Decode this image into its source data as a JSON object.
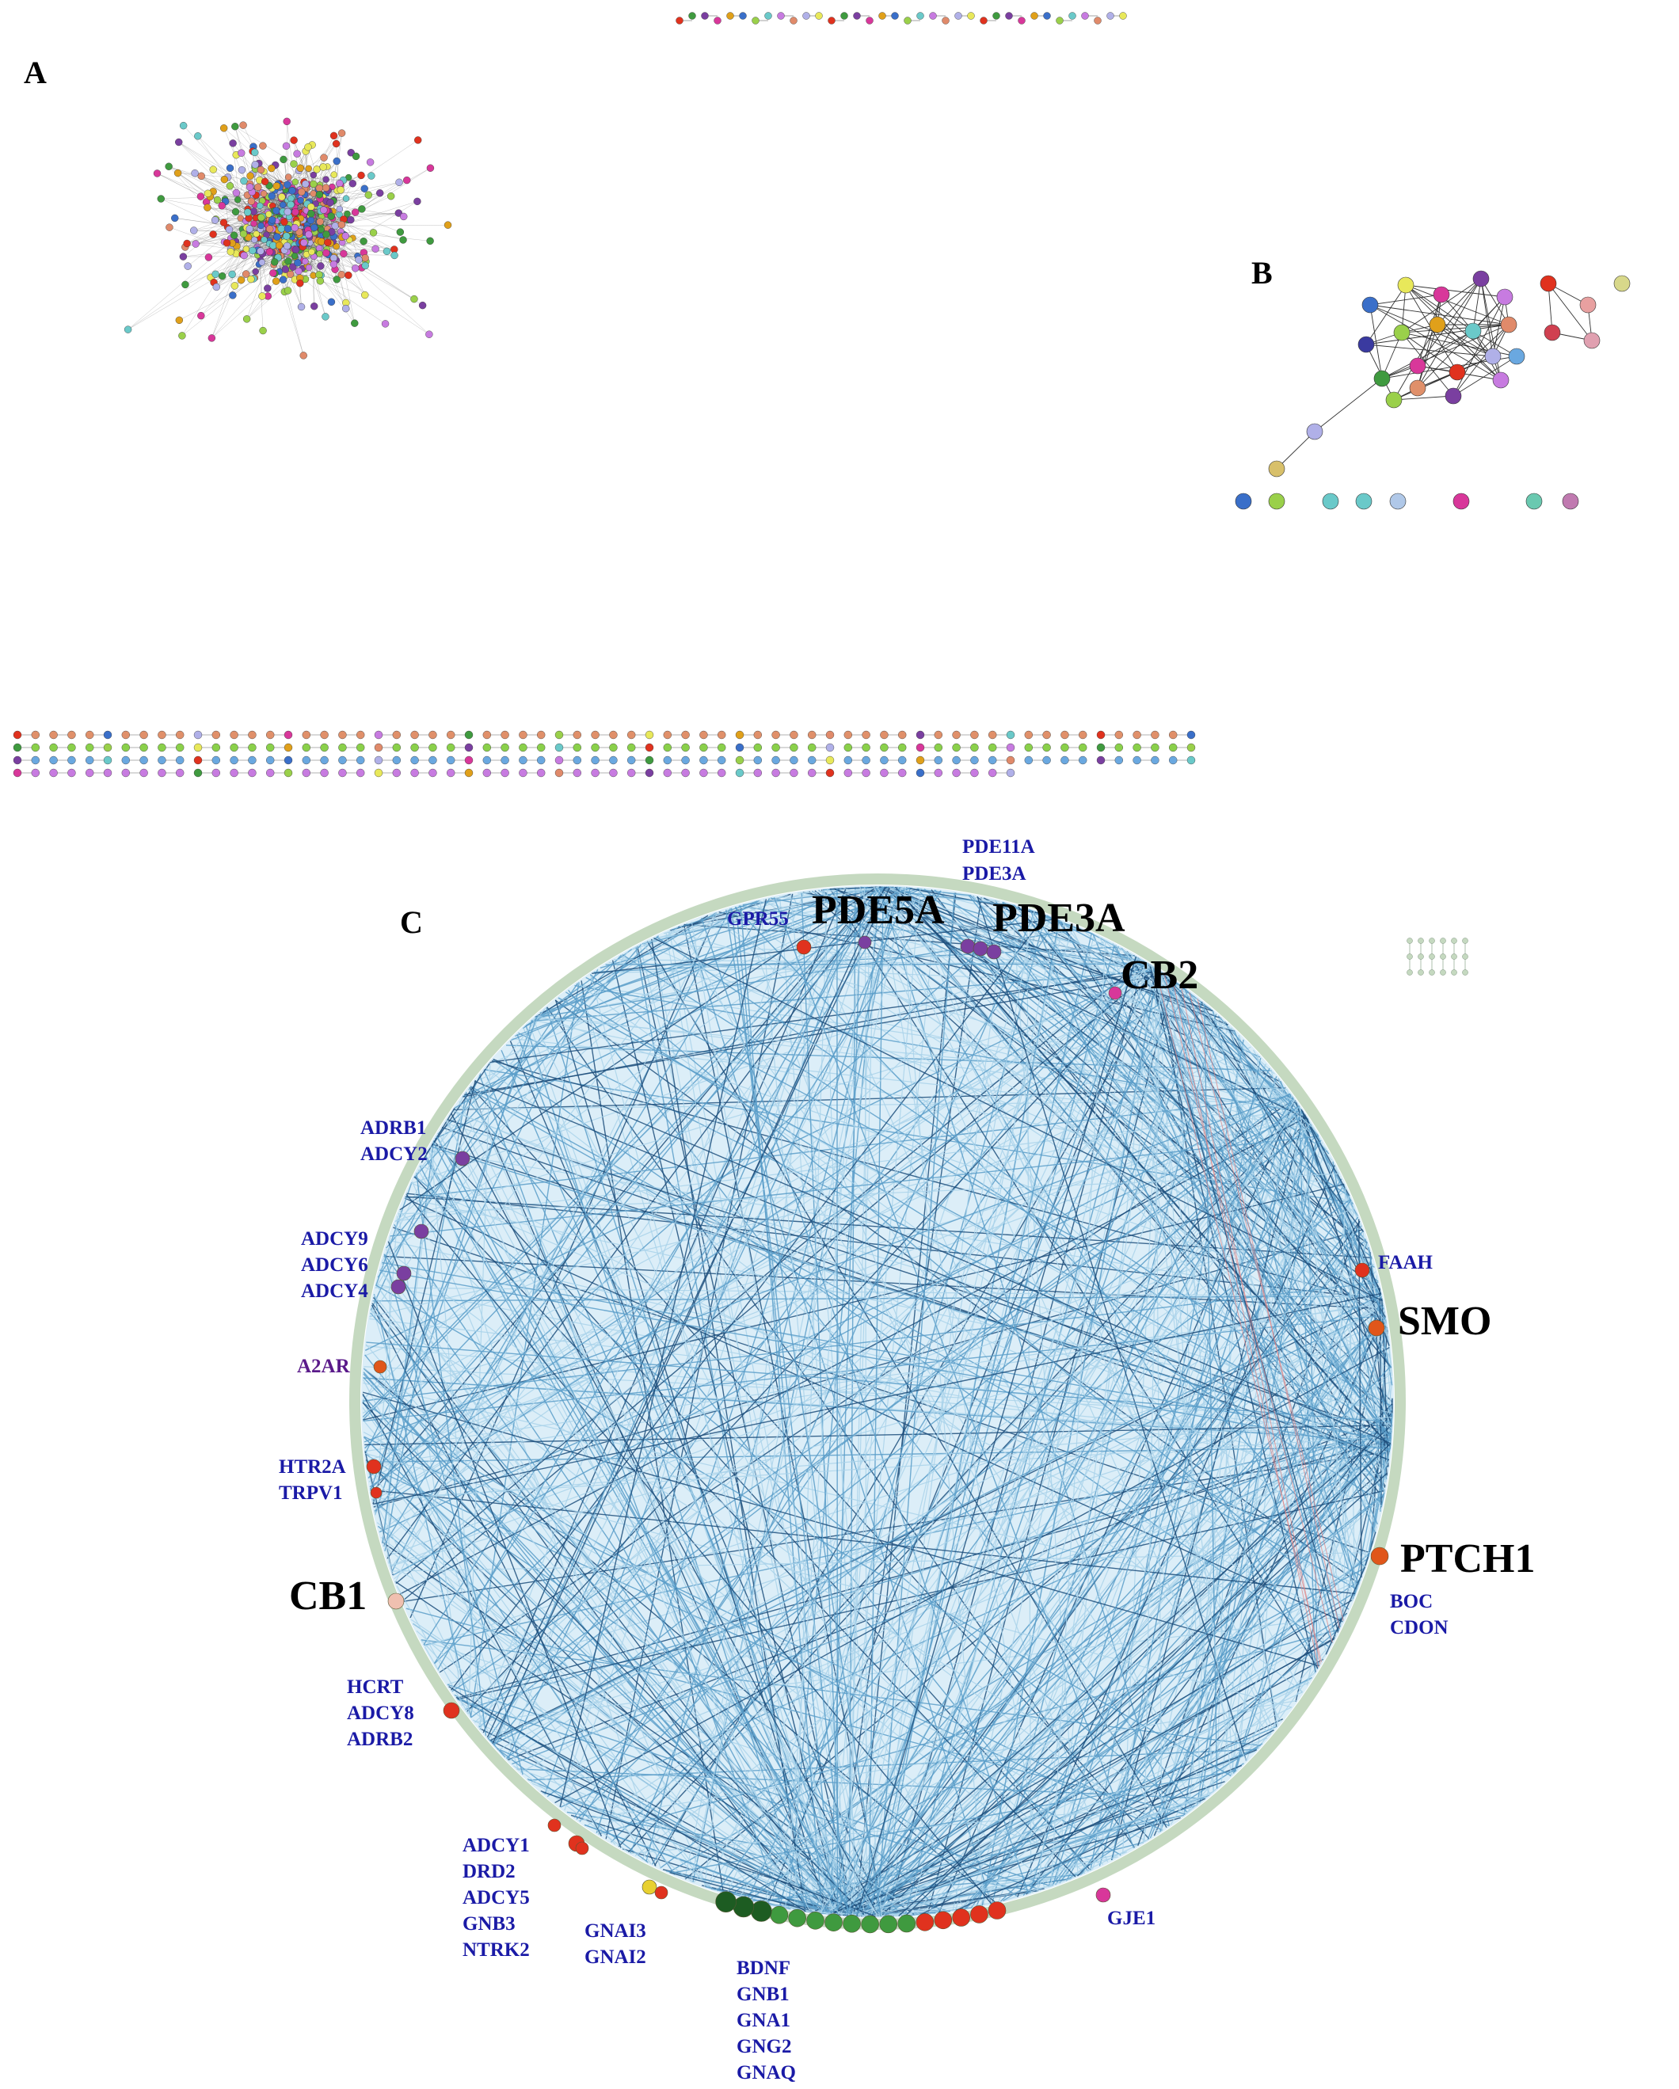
{
  "panels": {
    "a": {
      "letter": "A"
    },
    "b": {
      "letter": "B"
    },
    "c": {
      "letter": "C"
    }
  },
  "colors": {
    "edge_a": "#555555",
    "edge_c_light": "#a9d2ea",
    "edge_c_mid": "#5b9ec9",
    "edge_c_dark": "#1d4f7c",
    "ring": "#c5d9c0",
    "label_blue": "#1a1aa6",
    "label_purple": "#5a1a8a",
    "node_red": "#e0321e",
    "node_purple": "#7a3fa0",
    "node_pink": "#d8379a",
    "node_orange": "#e0561a",
    "node_green": "#3f9a3f",
    "node_darkgreen": "#1d5c22"
  },
  "circle_labels": {
    "gpr55": "GPR55",
    "pde5a": "PDE5A",
    "pde11a": "PDE11A",
    "pde3a_small": "PDE3A",
    "pde3a": "PDE3A",
    "cb2": "CB2",
    "adrb1": "ADRB1",
    "adcy2": "ADCY2",
    "adcy9": "ADCY9",
    "adcy6": "ADCY6",
    "adcy4": "ADCY4",
    "a2ar": "A2AR",
    "htr2a": "HTR2A",
    "trpv1": "TRPV1",
    "cb1": "CB1",
    "hcrt": "HCRT",
    "adcy8": "ADCY8",
    "adrb2": "ADRB2",
    "adcy1": "ADCY1",
    "drd2": "DRD2",
    "adcy5": "ADCY5",
    "gnb3": "GNB3",
    "ntrk2": "NTRK2",
    "gnai3": "GNAI3",
    "gnai2": "GNAI2",
    "bdnf": "BDNF",
    "gnb1": "GNB1",
    "gna1": "GNA1",
    "gng2": "GNG2",
    "gnaq": "GNAQ",
    "gje1": "GJE1",
    "faah": "FAAH",
    "smo": "SMO",
    "ptch1": "PTCH1",
    "boc": "BOC",
    "cdon": "CDON"
  }
}
